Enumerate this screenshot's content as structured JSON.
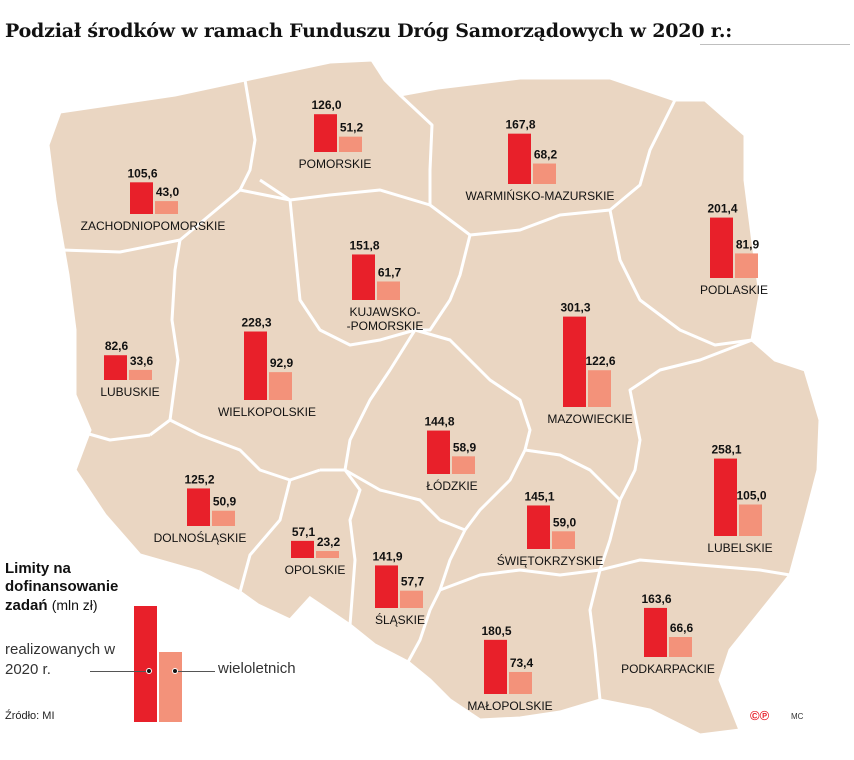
{
  "title": "Podział środków w ramach Funduszu Dróg Samorządowych w 2020 r.:",
  "colors": {
    "realized": "#e8202a",
    "multiyear": "#f3927a",
    "land": "#ead6c2",
    "border": "#ffffff"
  },
  "legend": {
    "title": "Limity na dofinansowanie zadań",
    "unit": "(mln zł)",
    "realized_label": "realizowanych w 2020 r.",
    "multiyear_label": "wieloletnich"
  },
  "source": "Źródło: MI",
  "logo": "©℗",
  "author": "MC",
  "chart_data": {
    "type": "bar",
    "unit": "mln zł",
    "series": [
      {
        "name": "realizowanych w 2020 r.",
        "key": "realized"
      },
      {
        "name": "wieloletnich",
        "key": "multiyear"
      }
    ],
    "regions": [
      {
        "name": "POMORSKIE",
        "realized": 126.0,
        "realized_label": "126,0",
        "multiyear": 51.2,
        "multiyear_label": "51,2"
      },
      {
        "name": "WARMIŃSKO-MAZURSKIE",
        "realized": 167.8,
        "realized_label": "167,8",
        "multiyear": 68.2,
        "multiyear_label": "68,2"
      },
      {
        "name": "ZACHODNIOPOMORSKIE",
        "realized": 105.6,
        "realized_label": "105,6",
        "multiyear": 43.0,
        "multiyear_label": "43,0"
      },
      {
        "name": "PODLASKIE",
        "realized": 201.4,
        "realized_label": "201,4",
        "multiyear": 81.9,
        "multiyear_label": "81,9"
      },
      {
        "name": "KUJAWSKO-POMORSKIE",
        "display_lines": [
          "KUJAWSKO-",
          "-POMORSKIE"
        ],
        "realized": 151.8,
        "realized_label": "151,8",
        "multiyear": 61.7,
        "multiyear_label": "61,7"
      },
      {
        "name": "MAZOWIECKIE",
        "realized": 301.3,
        "realized_label": "301,3",
        "multiyear": 122.6,
        "multiyear_label": "122,6"
      },
      {
        "name": "LUBUSKIE",
        "realized": 82.6,
        "realized_label": "82,6",
        "multiyear": 33.6,
        "multiyear_label": "33,6"
      },
      {
        "name": "WIELKOPOLSKIE",
        "realized": 228.3,
        "realized_label": "228,3",
        "multiyear": 92.9,
        "multiyear_label": "92,9"
      },
      {
        "name": "ŁÓDZKIE",
        "realized": 144.8,
        "realized_label": "144,8",
        "multiyear": 58.9,
        "multiyear_label": "58,9"
      },
      {
        "name": "LUBELSKIE",
        "realized": 258.1,
        "realized_label": "258,1",
        "multiyear": 105.0,
        "multiyear_label": "105,0"
      },
      {
        "name": "DOLNOŚLĄSKIE",
        "realized": 125.2,
        "realized_label": "125,2",
        "multiyear": 50.9,
        "multiyear_label": "50,9"
      },
      {
        "name": "OPOLSKIE",
        "realized": 57.1,
        "realized_label": "57,1",
        "multiyear": 23.2,
        "multiyear_label": "23,2"
      },
      {
        "name": "ŚLĄSKIE",
        "realized": 141.9,
        "realized_label": "141,9",
        "multiyear": 57.7,
        "multiyear_label": "57,7"
      },
      {
        "name": "ŚWIĘTOKRZYSKIE",
        "realized": 145.1,
        "realized_label": "145,1",
        "multiyear": 59.0,
        "multiyear_label": "59,0"
      },
      {
        "name": "MAŁOPOLSKIE",
        "realized": 180.5,
        "realized_label": "180,5",
        "multiyear": 73.4,
        "multiyear_label": "73,4"
      },
      {
        "name": "PODKARPACKIE",
        "realized": 163.6,
        "realized_label": "163,6",
        "multiyear": 66.6,
        "multiyear_label": "66,6"
      }
    ]
  }
}
